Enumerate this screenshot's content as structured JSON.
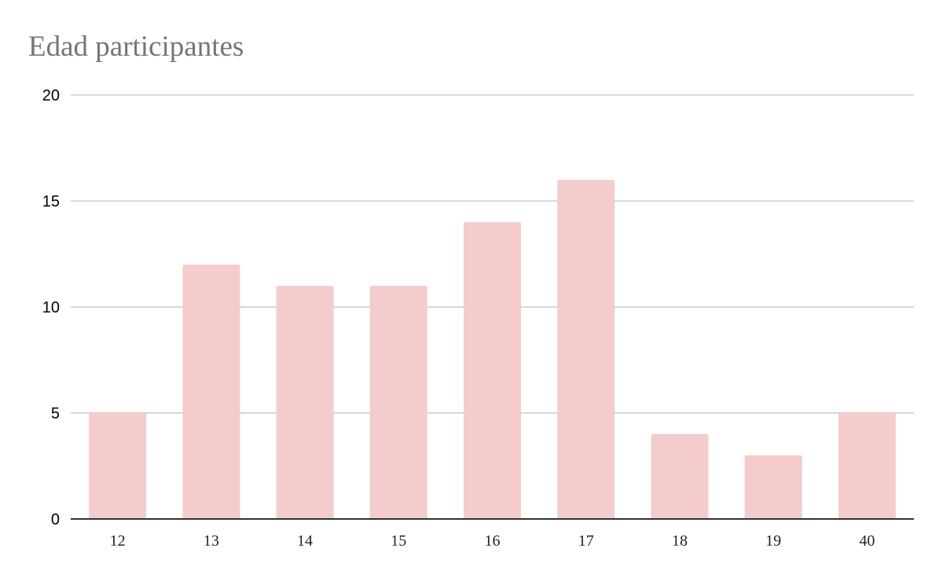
{
  "chart_data": {
    "type": "bar",
    "title": "Edad participantes",
    "xlabel": "",
    "ylabel": "",
    "categories": [
      "12",
      "13",
      "14",
      "15",
      "16",
      "17",
      "18",
      "19",
      "40"
    ],
    "values": [
      5,
      12,
      11,
      11,
      14,
      16,
      4,
      3,
      5
    ],
    "ylim": [
      0,
      20
    ],
    "yticks": [
      0,
      5,
      10,
      15,
      20
    ],
    "grid": true,
    "legend": "none",
    "colors": {
      "bar": "#f4cccc",
      "grid": "#cccccc",
      "baseline": "#333333",
      "title": "#757575"
    }
  }
}
